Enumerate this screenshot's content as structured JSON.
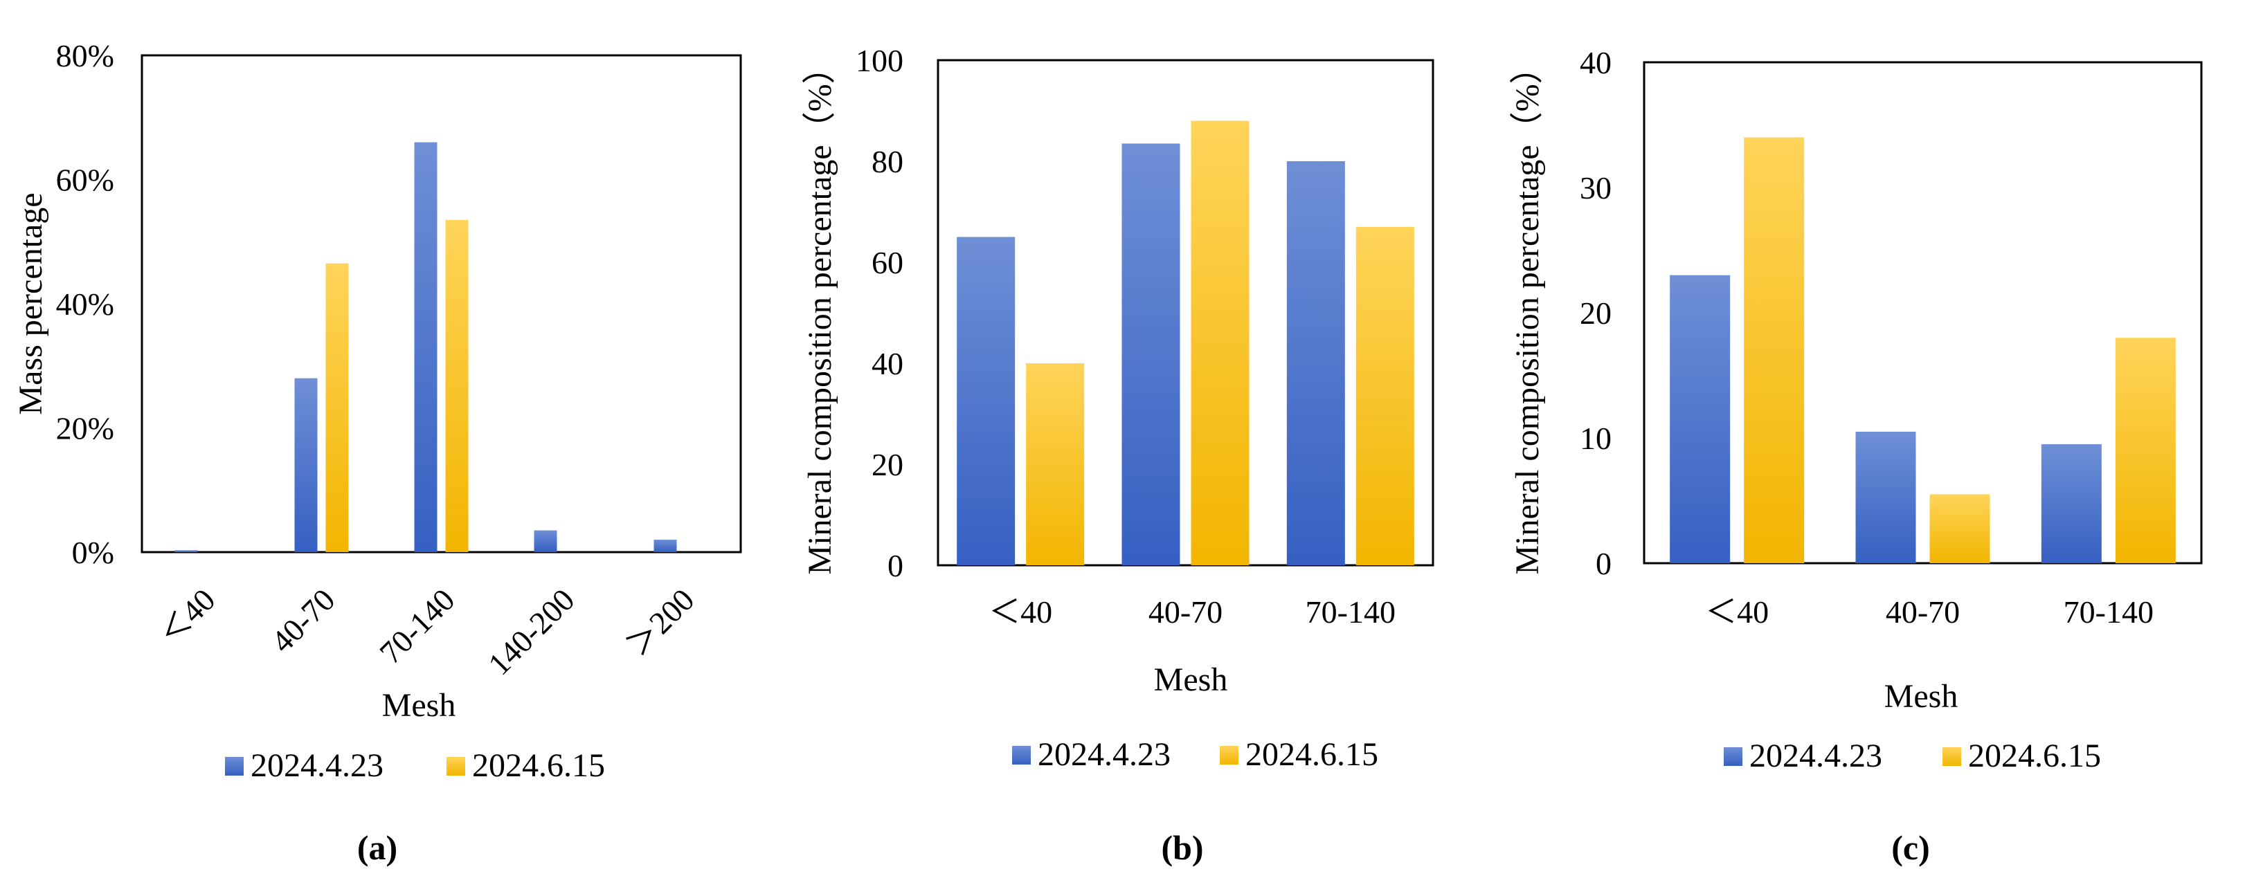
{
  "colors": {
    "series_a_light": "#6f8fd6",
    "series_a_dark": "#3560c2",
    "series_b_light": "#ffd45a",
    "series_b_dark": "#f2b500",
    "axis": "#000000"
  },
  "chart_data": [
    {
      "type": "bar",
      "panel_label": "(a)",
      "categories": [
        "<40",
        "40-70",
        "70-140",
        "140-200",
        ">200"
      ],
      "category_display": [
        "＜40",
        "40-70",
        "70-140",
        "140-200",
        "＞200"
      ],
      "series": [
        {
          "name": "2024.4.23",
          "values": [
            0.3,
            28,
            66,
            3.5,
            2
          ]
        },
        {
          "name": "2024.6.15",
          "values": [
            0,
            46.5,
            53.5,
            0,
            0
          ]
        }
      ],
      "ylim": [
        0,
        80
      ],
      "yticks": [
        0,
        20,
        40,
        60,
        80
      ],
      "ytick_labels": [
        "0%",
        "20%",
        "40%",
        "60%",
        "80%"
      ],
      "xlabel": "Mesh",
      "ylabel": "Mass percentage",
      "legend_position": "bottom"
    },
    {
      "type": "bar",
      "panel_label": "(b)",
      "categories": [
        "<40",
        "40-70",
        "70-140"
      ],
      "category_display": [
        "＜40",
        "40-70",
        "70-140"
      ],
      "series": [
        {
          "name": "2024.4.23",
          "values": [
            65,
            83.5,
            80
          ]
        },
        {
          "name": "2024.6.15",
          "values": [
            40,
            88,
            67
          ]
        }
      ],
      "ylim": [
        0,
        100
      ],
      "yticks": [
        0,
        20,
        40,
        60,
        80,
        100
      ],
      "ytick_labels": [
        "0",
        "20",
        "40",
        "60",
        "80",
        "100"
      ],
      "xlabel": "Mesh",
      "ylabel": "Mineral composition percentage（%）",
      "legend_position": "bottom"
    },
    {
      "type": "bar",
      "panel_label": "(c)",
      "categories": [
        "<40",
        "40-70",
        "70-140"
      ],
      "category_display": [
        "＜40",
        "40-70",
        "70-140"
      ],
      "series": [
        {
          "name": "2024.4.23",
          "values": [
            23,
            10.5,
            9.5
          ]
        },
        {
          "name": "2024.6.15",
          "values": [
            34,
            5.5,
            18
          ]
        }
      ],
      "ylim": [
        0,
        40
      ],
      "yticks": [
        0,
        10,
        20,
        30,
        40
      ],
      "ytick_labels": [
        "0",
        "10",
        "20",
        "30",
        "40"
      ],
      "xlabel": "Mesh",
      "ylabel": "Mineral composition percentage（%）",
      "legend_position": "bottom"
    }
  ]
}
